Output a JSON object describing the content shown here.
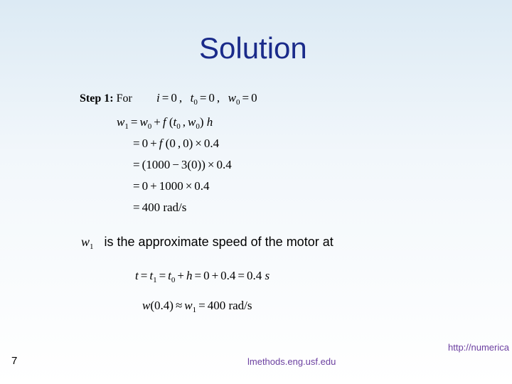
{
  "title": "Solution",
  "step": {
    "label": "Step 1:",
    "for": "For"
  },
  "initial_conditions": "i = 0,   t₀ = 0,   w₀ = 0",
  "derivation": {
    "line1": "w₁ = w₀ + f (t₀, w₀) h",
    "line2": "= 0 + f (0,0) × 0.4",
    "line3": "= (1000 − 3(0)) × 0.4",
    "line4": "= 0 + 1000 × 0.4",
    "line5": "= 400 rad/s"
  },
  "explain": {
    "var": "w₁",
    "text": "is the approximate speed of the motor at"
  },
  "t_eq": "t = t₁ = t₀ + h = 0 + 0.4 = 0.4 s",
  "w_eq": "w(0.4) ≈ w₁ = 400 rad/s",
  "page_num": "7",
  "footer_center": "lmethods.eng.usf.edu",
  "footer_right": "http://numerica",
  "colors": {
    "title": "#1a2b8a",
    "footer": "#6b3fa0",
    "bg_top": "#dceaf4",
    "bg_bottom": "#ffffff"
  }
}
